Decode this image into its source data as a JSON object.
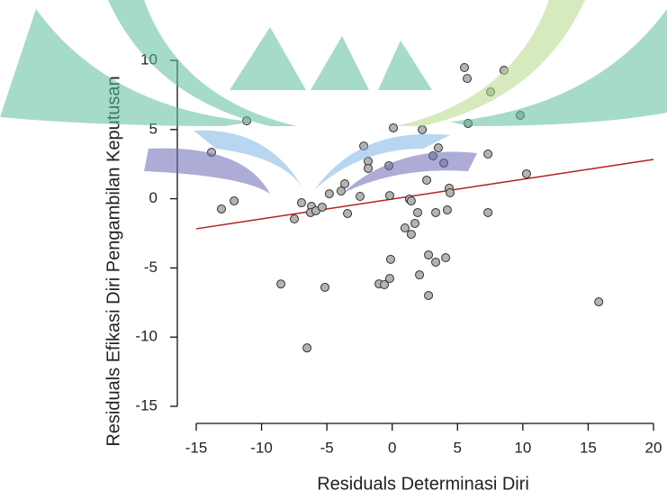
{
  "chart_data": {
    "type": "scatter",
    "xlabel": "Residuals Determinasi Diri",
    "ylabel": "Residuals Efikasi Diri Pengambilan Keputusan",
    "xlim": [
      -15,
      20
    ],
    "xticks": [
      -15,
      -10,
      -5,
      0,
      5,
      10,
      15,
      20
    ],
    "ylim": [
      -15,
      10
    ],
    "yticks": [
      -15,
      -10,
      -5,
      0,
      5,
      10
    ],
    "color": "#b3b3b3",
    "x": [
      -13.83,
      -13.07,
      -12.1,
      -11.14,
      -8.52,
      -7.49,
      -6.94,
      -6.18,
      -6.25,
      -5.84,
      -5.36,
      -6.52,
      -5.15,
      -4.81,
      -3.91,
      -3.63,
      -3.42,
      -2.46,
      -2.18,
      -1.84,
      -1.84,
      -1.01,
      -0.6,
      -0.25,
      -0.19,
      -0.12,
      -0.19,
      0.09,
      0.98,
      1.32,
      1.46,
      1.46,
      1.74,
      1.95,
      2.09,
      2.3,
      2.64,
      2.78,
      2.78,
      3.12,
      3.33,
      3.33,
      3.53,
      3.95,
      4.09,
      4.22,
      4.36,
      4.43,
      5.53,
      5.74,
      5.81,
      7.33,
      7.33,
      7.53,
      8.56,
      9.8,
      10.28,
      15.81
    ],
    "y": [
      3.36,
      -0.74,
      -0.16,
      5.63,
      -6.16,
      -1.46,
      -0.29,
      -0.55,
      -1.0,
      -0.87,
      -0.61,
      -10.78,
      -6.4,
      0.36,
      0.56,
      1.08,
      -1.07,
      0.17,
      3.81,
      2.71,
      2.19,
      -6.15,
      -6.21,
      2.38,
      0.23,
      -4.38,
      -5.76,
      5.12,
      -2.11,
      -0.03,
      -0.16,
      -2.57,
      -1.78,
      -1.0,
      -5.5,
      4.99,
      1.34,
      -4.06,
      -6.99,
      3.1,
      -1.0,
      -4.58,
      3.68,
      2.58,
      -4.26,
      -0.81,
      0.76,
      0.43,
      9.48,
      8.69,
      5.44,
      3.23,
      -1.0,
      7.72,
      9.28,
      6.03,
      1.8,
      -7.45
    ],
    "regression_line": {
      "color": "#b22222",
      "x": [
        -15,
        20
      ],
      "y": [
        -2.17,
        2.84
      ]
    }
  }
}
